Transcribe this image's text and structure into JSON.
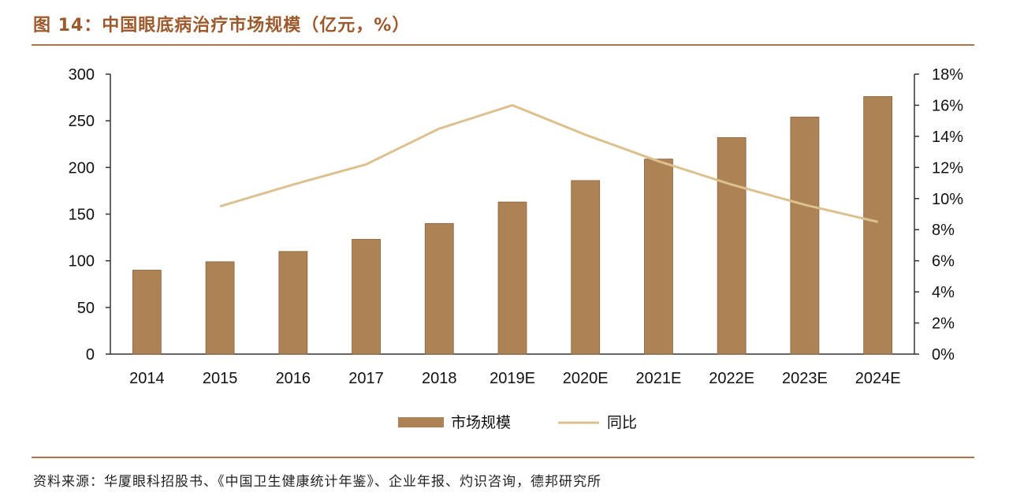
{
  "title": "图 14：中国眼底病治疗市场规模（亿元，%）",
  "source": "资料来源：华厦眼科招股书、《中国卫生健康统计年鉴》、企业年报、灼识咨询，德邦研究所",
  "colors": {
    "bar": "#ad8356",
    "line": "#dcc08f",
    "title": "#9c5a2c",
    "rule": "#a8764a"
  },
  "chart_data": {
    "type": "bar+line",
    "categories": [
      "2014",
      "2015",
      "2016",
      "2017",
      "2018",
      "2019E",
      "2020E",
      "2021E",
      "2022E",
      "2023E",
      "2024E"
    ],
    "series": [
      {
        "name": "市场规模",
        "type": "bar",
        "axis": "left",
        "values": [
          90,
          99,
          110,
          123,
          140,
          163,
          186,
          209,
          232,
          254,
          276
        ]
      },
      {
        "name": "同比",
        "type": "line",
        "axis": "right",
        "values": [
          null,
          9.5,
          10.9,
          12.2,
          14.5,
          16.0,
          14.1,
          12.4,
          10.9,
          9.6,
          8.5
        ]
      }
    ],
    "left_axis": {
      "ylim": [
        0,
        300
      ],
      "ticks": [
        "0",
        "50",
        "100",
        "150",
        "200",
        "250",
        "300"
      ]
    },
    "right_axis": {
      "ylim": [
        0,
        18
      ],
      "ticks": [
        "0%",
        "2%",
        "4%",
        "6%",
        "8%",
        "10%",
        "12%",
        "14%",
        "16%",
        "18%"
      ]
    },
    "grid": false,
    "legend_position": "bottom"
  }
}
